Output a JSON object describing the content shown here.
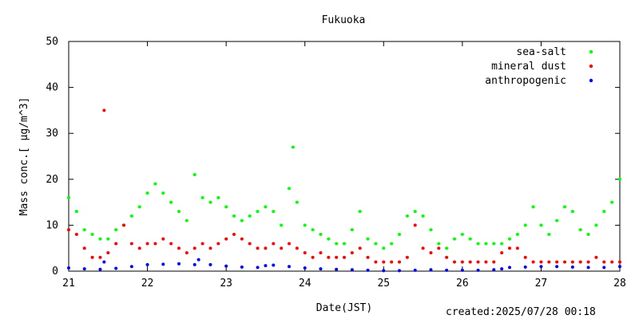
{
  "footer": {
    "created": "created:2025/07/28 00:18"
  },
  "chart_data": {
    "type": "scatter",
    "title": "Fukuoka",
    "xlabel": "Date(JST)",
    "ylabel": "Mass conc.[ μg/m^3]",
    "xlim": [
      21,
      28
    ],
    "ylim": [
      0,
      50
    ],
    "x_ticks": [
      "21",
      "22",
      "23",
      "24",
      "25",
      "26",
      "27",
      "28"
    ],
    "y_ticks": [
      "0",
      "10",
      "20",
      "30",
      "40",
      "50"
    ],
    "grid": false,
    "legend_position": "top-right",
    "series": [
      {
        "name": "sea-salt",
        "color": "#00ff00",
        "x": [
          21.0,
          21.1,
          21.2,
          21.3,
          21.4,
          21.5,
          21.6,
          21.7,
          21.8,
          21.9,
          22.0,
          22.1,
          22.2,
          22.3,
          22.4,
          22.5,
          22.6,
          22.7,
          22.8,
          22.9,
          23.0,
          23.1,
          23.2,
          23.3,
          23.4,
          23.5,
          23.6,
          23.7,
          23.8,
          23.85,
          23.9,
          24.0,
          24.1,
          24.2,
          24.3,
          24.4,
          24.5,
          24.6,
          24.7,
          24.8,
          24.9,
          25.0,
          25.1,
          25.2,
          25.3,
          25.4,
          25.5,
          25.6,
          25.7,
          25.8,
          25.9,
          26.0,
          26.1,
          26.2,
          26.3,
          26.4,
          26.5,
          26.6,
          26.7,
          26.8,
          26.9,
          27.0,
          27.1,
          27.2,
          27.3,
          27.4,
          27.5,
          27.6,
          27.7,
          27.8,
          27.9,
          28.0
        ],
        "y": [
          16,
          13,
          9,
          8,
          7,
          7,
          9,
          10,
          12,
          14,
          17,
          19,
          17,
          15,
          13,
          11,
          21,
          16,
          15,
          16,
          14,
          12,
          11,
          12,
          13,
          14,
          13,
          10,
          18,
          27,
          15,
          10,
          9,
          8,
          7,
          6,
          6,
          9,
          13,
          7,
          6,
          5,
          6,
          8,
          12,
          13,
          12,
          9,
          6,
          5,
          7,
          8,
          7,
          6,
          6,
          6,
          6,
          7,
          8,
          10,
          14,
          10,
          8,
          11,
          14,
          13,
          9,
          8,
          10,
          13,
          15,
          20
        ]
      },
      {
        "name": "mineral dust",
        "color": "#ff0000",
        "x": [
          21.0,
          21.1,
          21.2,
          21.3,
          21.4,
          21.45,
          21.5,
          21.6,
          21.7,
          21.8,
          21.9,
          22.0,
          22.1,
          22.2,
          22.3,
          22.4,
          22.5,
          22.6,
          22.7,
          22.8,
          22.9,
          23.0,
          23.1,
          23.2,
          23.3,
          23.4,
          23.5,
          23.6,
          23.7,
          23.8,
          23.9,
          24.0,
          24.1,
          24.2,
          24.3,
          24.4,
          24.5,
          24.6,
          24.7,
          24.8,
          24.9,
          25.0,
          25.1,
          25.2,
          25.3,
          25.4,
          25.5,
          25.6,
          25.7,
          25.8,
          25.9,
          26.0,
          26.1,
          26.2,
          26.3,
          26.4,
          26.5,
          26.6,
          26.7,
          26.8,
          26.9,
          27.0,
          27.1,
          27.2,
          27.3,
          27.4,
          27.5,
          27.6,
          27.7,
          27.8,
          27.9,
          28.0
        ],
        "y": [
          9,
          8,
          5,
          3,
          3,
          35,
          4,
          6,
          10,
          6,
          5,
          6,
          6,
          7,
          6,
          5,
          4,
          5,
          6,
          5,
          6,
          7,
          8,
          7,
          6,
          5,
          5,
          6,
          5,
          6,
          5,
          4,
          3,
          4,
          3,
          3,
          3,
          4,
          5,
          3,
          2,
          2,
          2,
          2,
          3,
          10,
          5,
          4,
          5,
          3,
          2,
          2,
          2,
          2,
          2,
          2,
          4,
          5,
          5,
          3,
          2,
          2,
          2,
          2,
          2,
          2,
          2,
          2,
          3,
          2,
          2,
          2
        ]
      },
      {
        "name": "anthropogenic",
        "color": "#0000ff",
        "x": [
          21.0,
          21.2,
          21.4,
          21.45,
          21.6,
          21.8,
          22.0,
          22.2,
          22.4,
          22.6,
          22.65,
          22.8,
          23.0,
          23.2,
          23.4,
          23.5,
          23.6,
          23.8,
          24.0,
          24.2,
          24.4,
          24.6,
          24.8,
          25.0,
          25.2,
          25.4,
          25.6,
          25.8,
          26.0,
          26.2,
          26.4,
          26.5,
          26.6,
          26.8,
          27.0,
          27.2,
          27.4,
          27.6,
          27.8,
          28.0
        ],
        "y": [
          0.7,
          0.5,
          0.4,
          2.0,
          0.6,
          1.0,
          1.4,
          1.5,
          1.6,
          1.4,
          2.5,
          1.4,
          1.1,
          0.9,
          0.8,
          1.2,
          1.3,
          1.0,
          0.7,
          0.5,
          0.4,
          0.3,
          0.2,
          0.1,
          0.1,
          0.2,
          0.3,
          0.2,
          0.2,
          0.2,
          0.3,
          0.5,
          0.8,
          0.9,
          1.0,
          1.0,
          0.9,
          0.8,
          0.8,
          1.0
        ]
      }
    ]
  }
}
